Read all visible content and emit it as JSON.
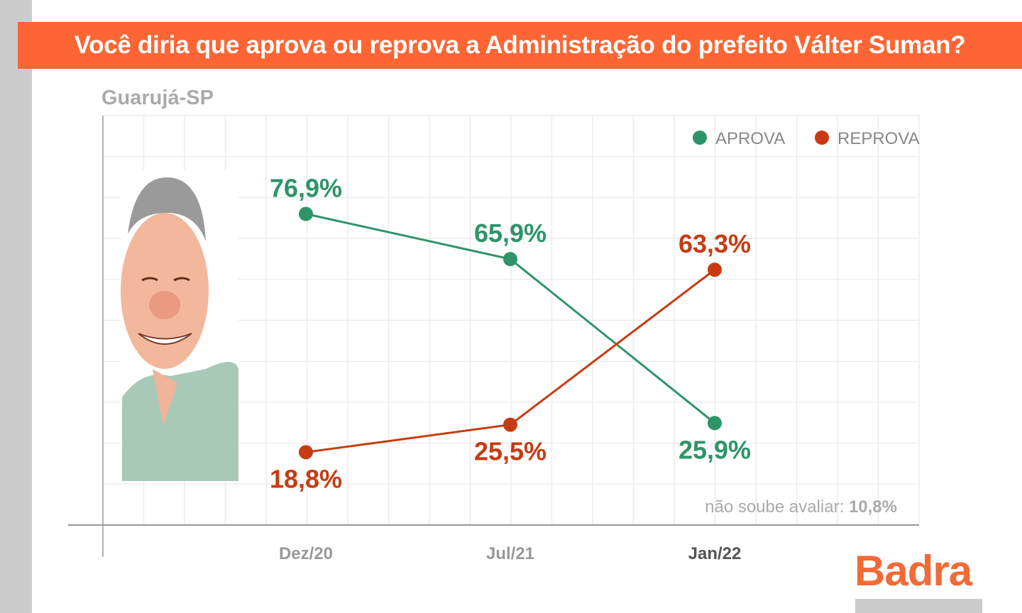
{
  "title": "Você diria que aprova ou reprova a Administração do prefeito Válter Suman?",
  "logo_text": "Badra",
  "colors": {
    "aprova": "#2e9467",
    "reprova": "#c73b12",
    "banner": "#fd6634"
  },
  "chart_data": {
    "type": "line",
    "title": "Você diria que aprova ou reprova a Administração do prefeito Válter Suman?",
    "subtitle": "Guarujá-SP",
    "categories": [
      "Dez/20",
      "Jul/21",
      "Jan/22"
    ],
    "series": [
      {
        "name": "APROVA",
        "values": [
          76.9,
          65.9,
          25.9
        ],
        "labels": [
          "76,9%",
          "65,9%",
          "25,9%"
        ]
      },
      {
        "name": "REPROVA",
        "values": [
          18.8,
          25.5,
          63.3
        ],
        "labels": [
          "18,8%",
          "25,5%",
          "63,3%"
        ]
      }
    ],
    "annotation": {
      "label": "não soube avaliar:",
      "value": "10,8%"
    },
    "legend": "top-right",
    "grid": true,
    "ylim": [
      0,
      100
    ]
  }
}
